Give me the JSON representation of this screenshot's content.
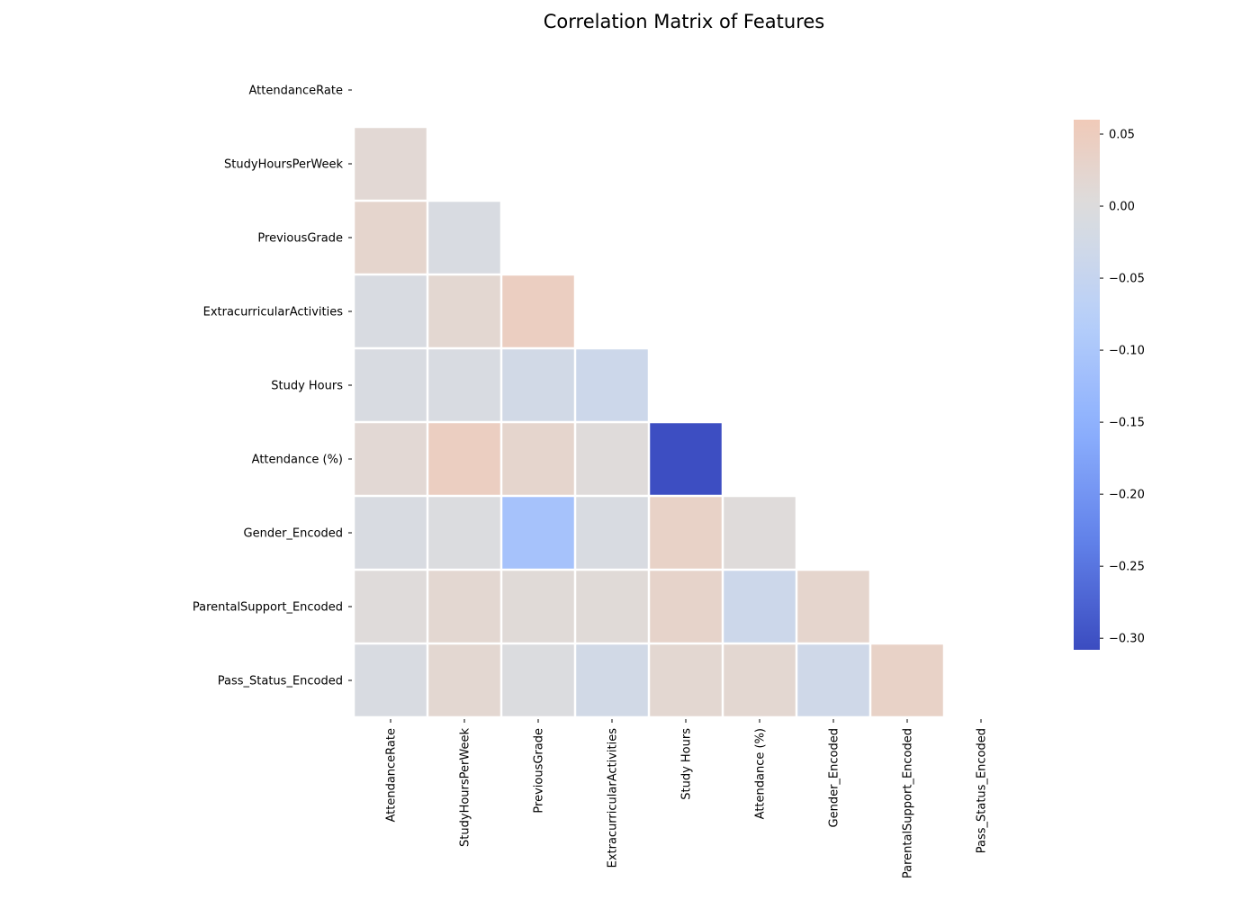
{
  "chart_data": {
    "type": "heatmap",
    "title": "Correlation Matrix of Features",
    "labels": [
      "AttendanceRate",
      "StudyHoursPerWeek",
      "PreviousGrade",
      "ExtracurricularActivities",
      "Study Hours",
      "Attendance (%)",
      "Gender_Encoded",
      "ParentalSupport_Encoded",
      "Pass_Status_Encoded"
    ],
    "mask": "upper-triangle-including-diagonal",
    "colormap": "coolwarm",
    "vmin": -0.308,
    "vmax": 0.06,
    "colorbar_ticks": [
      0.05,
      0.0,
      -0.05,
      -0.1,
      -0.15,
      -0.2,
      -0.25,
      -0.3
    ],
    "colorbar_tick_labels": [
      "0.05",
      "0.00",
      "−0.05",
      "−0.10",
      "−0.15",
      "−0.20",
      "−0.25",
      "−0.30"
    ],
    "cells": [
      {
        "row": 1,
        "col": 0,
        "value": 0.015
      },
      {
        "row": 2,
        "col": 0,
        "value": 0.025
      },
      {
        "row": 2,
        "col": 1,
        "value": -0.01
      },
      {
        "row": 3,
        "col": 0,
        "value": -0.01
      },
      {
        "row": 3,
        "col": 1,
        "value": 0.02
      },
      {
        "row": 3,
        "col": 2,
        "value": 0.045
      },
      {
        "row": 4,
        "col": 0,
        "value": -0.01
      },
      {
        "row": 4,
        "col": 1,
        "value": -0.01
      },
      {
        "row": 4,
        "col": 2,
        "value": -0.025
      },
      {
        "row": 4,
        "col": 3,
        "value": -0.035
      },
      {
        "row": 5,
        "col": 0,
        "value": 0.015
      },
      {
        "row": 5,
        "col": 1,
        "value": 0.045
      },
      {
        "row": 5,
        "col": 2,
        "value": 0.025
      },
      {
        "row": 5,
        "col": 3,
        "value": 0.005
      },
      {
        "row": 5,
        "col": 4,
        "value": -0.305
      },
      {
        "row": 6,
        "col": 0,
        "value": -0.01
      },
      {
        "row": 6,
        "col": 1,
        "value": -0.005
      },
      {
        "row": 6,
        "col": 2,
        "value": -0.11
      },
      {
        "row": 6,
        "col": 3,
        "value": -0.01
      },
      {
        "row": 6,
        "col": 4,
        "value": 0.035
      },
      {
        "row": 6,
        "col": 5,
        "value": 0.005
      },
      {
        "row": 7,
        "col": 0,
        "value": 0.005
      },
      {
        "row": 7,
        "col": 1,
        "value": 0.02
      },
      {
        "row": 7,
        "col": 2,
        "value": 0.01
      },
      {
        "row": 7,
        "col": 3,
        "value": 0.01
      },
      {
        "row": 7,
        "col": 4,
        "value": 0.03
      },
      {
        "row": 7,
        "col": 5,
        "value": -0.035
      },
      {
        "row": 7,
        "col": 6,
        "value": 0.025
      },
      {
        "row": 8,
        "col": 0,
        "value": -0.01
      },
      {
        "row": 8,
        "col": 1,
        "value": 0.02
      },
      {
        "row": 8,
        "col": 2,
        "value": -0.005
      },
      {
        "row": 8,
        "col": 3,
        "value": -0.025
      },
      {
        "row": 8,
        "col": 4,
        "value": 0.02
      },
      {
        "row": 8,
        "col": 5,
        "value": 0.02
      },
      {
        "row": 8,
        "col": 6,
        "value": -0.03
      },
      {
        "row": 8,
        "col": 7,
        "value": 0.035
      }
    ]
  }
}
